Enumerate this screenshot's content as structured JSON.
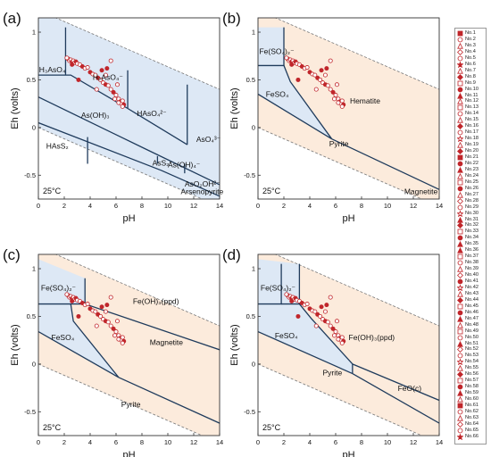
{
  "figure": {
    "legend_labels": [
      "No.1",
      "No.2",
      "No.3",
      "No.4",
      "No.5",
      "No.6",
      "No.7",
      "No.8",
      "No.9",
      "No.10",
      "No.11",
      "No.12",
      "No.13",
      "No.14",
      "No.15",
      "No.16",
      "No.17",
      "No.18",
      "No.19",
      "No.20",
      "No.21",
      "No.22",
      "No.23",
      "No.24",
      "No.25",
      "No.26",
      "No.27",
      "No.28",
      "No.29",
      "No.30",
      "No.31",
      "No.32",
      "No.33",
      "No.34",
      "No.35",
      "No.36",
      "No.37",
      "No.38",
      "No.39",
      "No.40",
      "No.41",
      "No.42",
      "No.43",
      "No.44",
      "No.45",
      "No.46",
      "No.47",
      "No.48",
      "No.49",
      "No.50",
      "No.51",
      "No.52",
      "No.53",
      "No.54",
      "No.55",
      "No.56",
      "No.57",
      "No.58",
      "No.59",
      "No.60",
      "No.61",
      "No.62",
      "No.63",
      "No.64",
      "No.65",
      "No.66"
    ],
    "colors": {
      "blue_region": "#dde8f5",
      "orange_region": "#fcebdc",
      "line": "#1f3b5c",
      "dash": "#777777",
      "sample": "#c0262b"
    }
  },
  "chart_data": [
    {
      "id": "a",
      "panel_label": "(a)",
      "type": "scatter",
      "xlabel": "pH",
      "ylabel": "Eh (volts)",
      "temperature_label": "25°C",
      "xlim": [
        0,
        14
      ],
      "ylim": [
        -0.75,
        1.15
      ],
      "xticks": [
        0,
        2,
        4,
        6,
        8,
        10,
        12,
        14
      ],
      "yticks": [
        -0.5,
        0,
        0.5,
        1
      ],
      "region_fill": "blue",
      "region_labels": [
        {
          "text": "H₃AsO₄",
          "x": 0.05,
          "y": 0.58
        },
        {
          "text": "H₂AsO₄⁻",
          "x": 4.2,
          "y": 0.5
        },
        {
          "text": "As(OH)₃",
          "x": 3.3,
          "y": 0.1
        },
        {
          "text": "HAsO₄²⁻",
          "x": 7.6,
          "y": 0.12
        },
        {
          "text": "AsO₄³⁻",
          "x": 12.2,
          "y": -0.15
        },
        {
          "text": "HAsS₂",
          "x": 0.6,
          "y": -0.22
        },
        {
          "text": "AsS₂⁻",
          "x": 8.8,
          "y": -0.4
        },
        {
          "text": "As(OH)₄⁻",
          "x": 10.0,
          "y": -0.42
        },
        {
          "text": "AsO₂OH²⁻",
          "x": 11.3,
          "y": -0.62
        },
        {
          "text": "Arsenopyrite",
          "x": 11.0,
          "y": -0.7
        }
      ]
    },
    {
      "id": "b",
      "panel_label": "(b)",
      "type": "scatter",
      "xlabel": "pH",
      "ylabel": "Eh (volts)",
      "temperature_label": "25°C",
      "xlim": [
        0,
        14
      ],
      "ylim": [
        -0.75,
        1.15
      ],
      "xticks": [
        0,
        2,
        4,
        6,
        8,
        10,
        12,
        14
      ],
      "yticks": [
        -0.5,
        0,
        0.5,
        1
      ],
      "region_fill": "orange",
      "region_labels": [
        {
          "text": "Fe(SO₄)₂⁻",
          "x": 0.1,
          "y": 0.77
        },
        {
          "text": "FeSO₄",
          "x": 0.6,
          "y": 0.32
        },
        {
          "text": "Hematite",
          "x": 7.1,
          "y": 0.25
        },
        {
          "text": "Pyrite",
          "x": 5.5,
          "y": -0.2
        },
        {
          "text": "Magnetite",
          "x": 11.3,
          "y": -0.7
        }
      ]
    },
    {
      "id": "c",
      "panel_label": "(c)",
      "type": "scatter",
      "xlabel": "pH",
      "ylabel": "Eh (volts)",
      "temperature_label": "25°C",
      "xlim": [
        0,
        14
      ],
      "ylim": [
        -0.75,
        1.15
      ],
      "xticks": [
        0,
        2,
        4,
        6,
        8,
        10,
        12,
        14
      ],
      "yticks": [
        -0.5,
        0,
        0.5,
        1
      ],
      "region_fill": "orange",
      "region_labels": [
        {
          "text": "Fe(SO₄)₂⁻",
          "x": 0.2,
          "y": 0.77
        },
        {
          "text": "Fe(OH)₃(ppd)",
          "x": 7.3,
          "y": 0.63
        },
        {
          "text": "FeSO₄",
          "x": 1.0,
          "y": 0.25
        },
        {
          "text": "Magnetite",
          "x": 8.6,
          "y": 0.2
        },
        {
          "text": "Pyrite",
          "x": 6.4,
          "y": -0.45
        }
      ]
    },
    {
      "id": "d",
      "panel_label": "(d)",
      "type": "scatter",
      "xlabel": "pH",
      "ylabel": "Eh (volts)",
      "temperature_label": "25°C",
      "xlim": [
        0,
        14
      ],
      "ylim": [
        -0.75,
        1.15
      ],
      "xticks": [
        0,
        2,
        4,
        6,
        8,
        10,
        12,
        14
      ],
      "yticks": [
        -0.5,
        0,
        0.5,
        1
      ],
      "region_fill": "orange",
      "region_labels": [
        {
          "text": "Fe(SO₄)₂⁻",
          "x": 0.2,
          "y": 0.77
        },
        {
          "text": "FeSO₄",
          "x": 1.3,
          "y": 0.27
        },
        {
          "text": "Fe(OH)₃(ppd)",
          "x": 7.0,
          "y": 0.25
        },
        {
          "text": "Pyrite",
          "x": 5.0,
          "y": -0.12
        },
        {
          "text": "FeO(c)",
          "x": 10.8,
          "y": -0.28
        }
      ]
    }
  ]
}
